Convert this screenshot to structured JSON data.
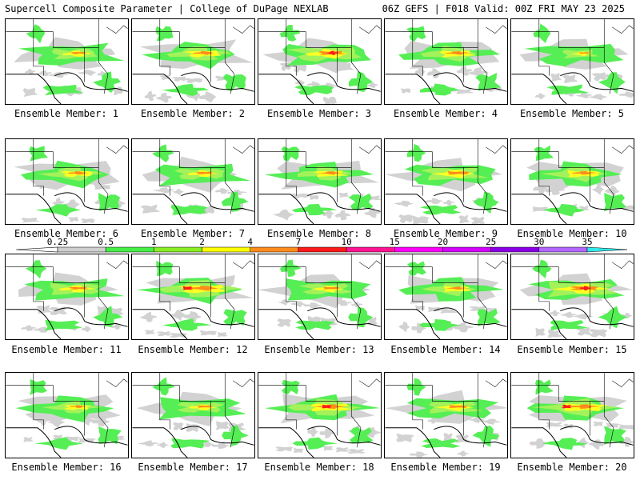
{
  "header": {
    "left_title": "Supercell Composite Parameter | College of DuPage NEXLAB",
    "right_title": "06Z GEFS | F018 Valid: 00Z FRI MAY 23 2025"
  },
  "members": [
    {
      "label": "Ensemble Member: 1",
      "intensity": 0.45
    },
    {
      "label": "Ensemble Member: 2",
      "intensity": 0.6
    },
    {
      "label": "Ensemble Member: 3",
      "intensity": 0.75
    },
    {
      "label": "Ensemble Member: 4",
      "intensity": 0.6
    },
    {
      "label": "Ensemble Member: 5",
      "intensity": 0.3
    },
    {
      "label": "Ensemble Member: 6",
      "intensity": 0.55
    },
    {
      "label": "Ensemble Member: 7",
      "intensity": 0.5
    },
    {
      "label": "Ensemble Member: 8",
      "intensity": 0.55
    },
    {
      "label": "Ensemble Member: 9",
      "intensity": 0.65
    },
    {
      "label": "Ensemble Member: 10",
      "intensity": 0.6
    },
    {
      "label": "Ensemble Member: 11",
      "intensity": 0.55
    },
    {
      "label": "Ensemble Member: 12",
      "intensity": 0.8
    },
    {
      "label": "Ensemble Member: 13",
      "intensity": 0.5
    },
    {
      "label": "Ensemble Member: 14",
      "intensity": 0.5
    },
    {
      "label": "Ensemble Member: 15",
      "intensity": 0.8
    },
    {
      "label": "Ensemble Member: 16",
      "intensity": 0.45
    },
    {
      "label": "Ensemble Member: 17",
      "intensity": 0.45
    },
    {
      "label": "Ensemble Member: 18",
      "intensity": 0.75
    },
    {
      "label": "Ensemble Member: 19",
      "intensity": 0.55
    },
    {
      "label": "Ensemble Member: 20",
      "intensity": 0.75
    }
  ],
  "legend": {
    "ticks": [
      "0.25",
      "0.5",
      "1",
      "2",
      "4",
      "7",
      "10",
      "15",
      "20",
      "25",
      "30",
      "35"
    ],
    "colors": [
      "#cfcfcf",
      "#44ee44",
      "#88ee22",
      "#ffff00",
      "#ff8c1a",
      "#ff1a1a",
      "#ff1493",
      "#ff00ff",
      "#d400ff",
      "#8a00e6",
      "#b266ff",
      "#33e8e8"
    ]
  },
  "map_colors": {
    "gray": "#d2d2d2",
    "green": "#55ee55",
    "lightgreen": "#a4f25a",
    "yellow": "#ffff22",
    "orange": "#ff8c1a",
    "red": "#ff1a1a"
  }
}
